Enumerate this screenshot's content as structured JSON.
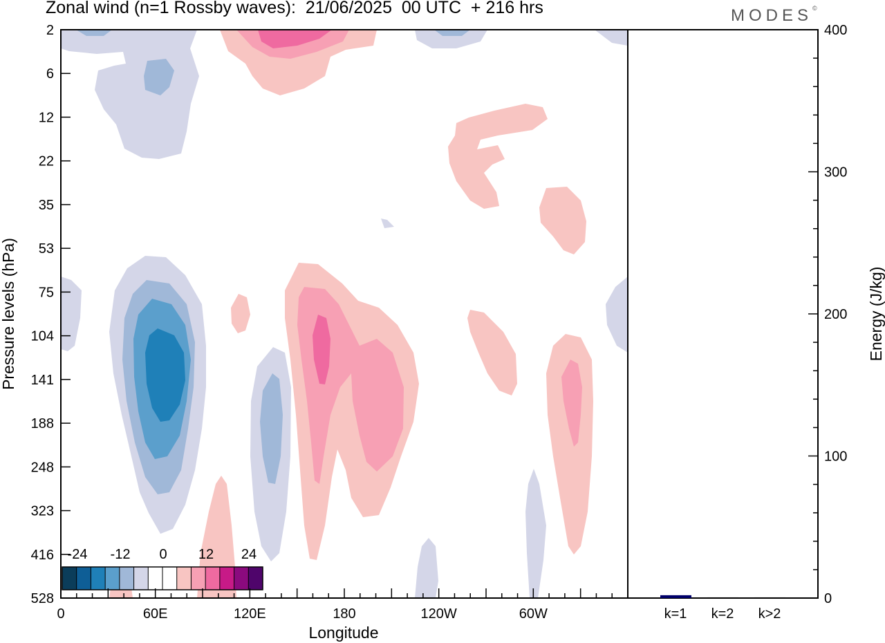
{
  "header": {
    "title": "Zonal wind (n=1 Rossby waves):  21/06/2025  00 UTC  + 216 hrs",
    "logo": "MODES",
    "logo_mark": "©"
  },
  "chart_data": [
    {
      "type": "heatmap",
      "xlabel": "Longitude",
      "ylabel": "Pressure levels (hPa)",
      "x_ticks": [
        "0",
        "60E",
        "120E",
        "180",
        "120W",
        "60W"
      ],
      "x_tick_values": [
        0,
        60,
        120,
        180,
        240,
        300
      ],
      "xlim": [
        0,
        360
      ],
      "y_ticks": [
        "2",
        "6",
        "12",
        "22",
        "35",
        "53",
        "75",
        "104",
        "141",
        "188",
        "248",
        "323",
        "416",
        "528"
      ],
      "colorbar": {
        "labels": [
          "-24",
          "-12",
          "0",
          "12",
          "24"
        ],
        "colors": [
          "#0b3d5a",
          "#0e5e96",
          "#1f80b8",
          "#5b9fcc",
          "#a0b8d8",
          "#d4d6e8",
          "#ffffff",
          "#ffffff",
          "#f8c5c2",
          "#f7a0b4",
          "#ef6aa0",
          "#c71a87",
          "#8b0a7e",
          "#4f056b"
        ]
      },
      "features": [
        {
          "sign": "negative",
          "region": "upper levels near 60E",
          "max_magnitude": 12
        },
        {
          "sign": "negative",
          "region": "75-416 hPa near 60E",
          "max_magnitude": 18
        },
        {
          "sign": "negative",
          "region": "104-416 hPa near 135E",
          "max_magnitude": 6
        },
        {
          "sign": "positive",
          "region": "2-6 hPa near 150E",
          "max_magnitude": 12
        },
        {
          "sign": "positive",
          "region": "75-416 hPa near 170E-200E",
          "max_magnitude": 12
        },
        {
          "sign": "positive",
          "region": "12-35 hPa near 110W-90W",
          "max_magnitude": 3
        },
        {
          "sign": "positive",
          "region": "104-416 hPa near 40W",
          "max_magnitude": 6
        }
      ]
    },
    {
      "type": "bar",
      "ylabel": "Energy (J/kg)",
      "categories": [
        "k=1",
        "k=2",
        "k>2"
      ],
      "values": [
        2,
        0.5,
        0.5
      ],
      "ylim": [
        0,
        400
      ],
      "y_ticks": [
        "0",
        "100",
        "200",
        "300",
        "400"
      ],
      "bar_colors": [
        "#00006a",
        "#000000",
        "#000000"
      ]
    }
  ]
}
